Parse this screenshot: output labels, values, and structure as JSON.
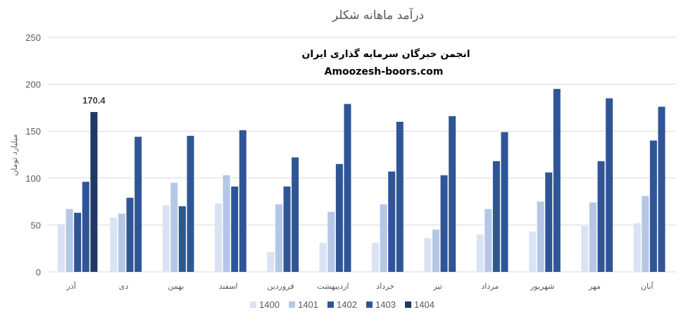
{
  "chart_data": {
    "type": "bar",
    "title": "درآمد ماهانه شکلر",
    "ylabel": "میلیارد تومان",
    "xlabel": "",
    "ylim": [
      0,
      250
    ],
    "yticks": [
      0,
      50,
      100,
      150,
      200,
      250
    ],
    "grid": true,
    "legend_position": "bottom",
    "categories": [
      "آذر",
      "دی",
      "بهمن",
      "اسفند",
      "فروردین",
      "اردیبهشت",
      "خرداد",
      "تیر",
      "مرداد",
      "شهریور",
      "مهر",
      "آبان"
    ],
    "series": [
      {
        "name": "1400",
        "color": "#dae3f3",
        "values": [
          51,
          58,
          71,
          73,
          21,
          31,
          31,
          36,
          40,
          43,
          49,
          52
        ]
      },
      {
        "name": "1401",
        "color": "#b4c7e7",
        "values": [
          67,
          62,
          95,
          103,
          72,
          64,
          72,
          45,
          67,
          75,
          74,
          81
        ]
      },
      {
        "name": "1402",
        "color": "#2f5597",
        "values": [
          63,
          79,
          70,
          91,
          91,
          115,
          107,
          103,
          118,
          106,
          118,
          140
        ]
      },
      {
        "name": "1403",
        "color": "#2f5597",
        "values": [
          96,
          144,
          145,
          151,
          122,
          179,
          160,
          166,
          149,
          195,
          185,
          176
        ]
      },
      {
        "name": "1404",
        "color": "#203864",
        "values": [
          170.4,
          null,
          null,
          null,
          null,
          null,
          null,
          null,
          null,
          null,
          null,
          null
        ]
      }
    ],
    "data_labels": [
      {
        "category": "آذر",
        "series": "1404",
        "text": "170.4"
      }
    ]
  },
  "watermark": {
    "line1": "انجمن خبرگان سرمایه گذاری ایران",
    "line2": "Amoozesh-boors.com"
  }
}
